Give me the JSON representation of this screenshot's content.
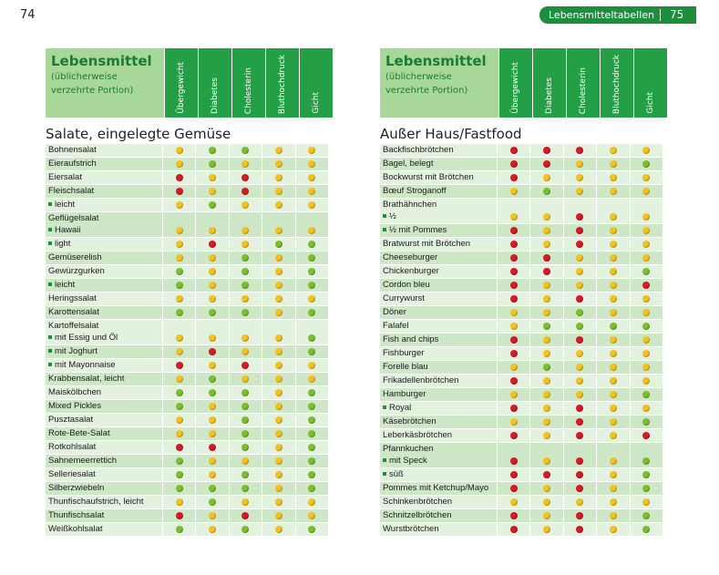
{
  "page_left": "74",
  "running_head": {
    "title": "Lebensmitteltabellen",
    "page": "75"
  },
  "header": {
    "title": "Lebensmittel",
    "subtitle_line1": "(üblicherweise",
    "subtitle_line2": "verzehrte Portion)",
    "columns": [
      "Übergewicht",
      "Diabetes",
      "Cholesterin",
      "Bluthochdruck",
      "Gicht"
    ]
  },
  "legend_colors": {
    "g": "#7bbf2e",
    "y": "#f4c21f",
    "r": "#d51b27"
  },
  "left": {
    "section": "Salate, eingelegte Gemüse",
    "rows": [
      {
        "label": "Bohnensalat",
        "dots": [
          "y",
          "g",
          "g",
          "y",
          "y"
        ]
      },
      {
        "label": "Eieraufstrich",
        "dots": [
          "y",
          "g",
          "y",
          "y",
          "y"
        ]
      },
      {
        "label": "Eiersalat",
        "dots": [
          "r",
          "y",
          "r",
          "y",
          "y"
        ]
      },
      {
        "label": "Fleischsalat",
        "dots": [
          "r",
          "y",
          "r",
          "y",
          "y"
        ]
      },
      {
        "label": "leicht",
        "bullet": true,
        "dots": [
          "y",
          "g",
          "y",
          "y",
          "y"
        ]
      },
      {
        "label": "Geflügelsalat",
        "label2": "Hawaii",
        "bullet2": true,
        "dots": [
          "y",
          "y",
          "y",
          "y",
          "y"
        ]
      },
      {
        "label": "light",
        "bullet": true,
        "dots": [
          "y",
          "r",
          "y",
          "g",
          "g"
        ]
      },
      {
        "label": "Gemüserelish",
        "dots": [
          "y",
          "y",
          "g",
          "y",
          "g"
        ]
      },
      {
        "label": "Gewürzgurken",
        "dots": [
          "g",
          "y",
          "g",
          "y",
          "g"
        ]
      },
      {
        "label": "leicht",
        "bullet": true,
        "dots": [
          "g",
          "y",
          "g",
          "y",
          "g"
        ]
      },
      {
        "label": "Heringssalat",
        "dots": [
          "y",
          "y",
          "y",
          "y",
          "y"
        ]
      },
      {
        "label": "Karottensalat",
        "dots": [
          "g",
          "g",
          "g",
          "y",
          "g"
        ]
      },
      {
        "label": "Kartoffelsalat",
        "label2": "mit Essig und Öl",
        "bullet2": true,
        "dots": [
          "y",
          "y",
          "y",
          "y",
          "g"
        ]
      },
      {
        "label": "mit Joghurt",
        "bullet": true,
        "dots": [
          "y",
          "r",
          "y",
          "y",
          "g"
        ]
      },
      {
        "label": "mit Mayonnaise",
        "bullet": true,
        "dots": [
          "r",
          "y",
          "r",
          "y",
          "y"
        ]
      },
      {
        "label": "Krabbensalat, leicht",
        "dots": [
          "y",
          "g",
          "y",
          "y",
          "y"
        ]
      },
      {
        "label": "Maiskölbchen",
        "dots": [
          "g",
          "g",
          "g",
          "y",
          "g"
        ]
      },
      {
        "label": "Mixed Pickles",
        "dots": [
          "g",
          "y",
          "g",
          "y",
          "g"
        ]
      },
      {
        "label": "Pusztasalat",
        "dots": [
          "y",
          "y",
          "g",
          "y",
          "g"
        ]
      },
      {
        "label": "Rote-Bete-Salat",
        "dots": [
          "y",
          "y",
          "g",
          "y",
          "g"
        ]
      },
      {
        "label": "Rotkohlsalat",
        "dots": [
          "r",
          "r",
          "g",
          "y",
          "g"
        ]
      },
      {
        "label": "Sahnemeerrettich",
        "dots": [
          "g",
          "y",
          "y",
          "y",
          "g"
        ]
      },
      {
        "label": "Selleriesalat",
        "dots": [
          "g",
          "y",
          "g",
          "y",
          "g"
        ]
      },
      {
        "label": "Silberzwiebeln",
        "dots": [
          "g",
          "g",
          "g",
          "y",
          "g"
        ]
      },
      {
        "label": "Thunfischaufstrich, leicht",
        "dots": [
          "y",
          "g",
          "y",
          "y",
          "y"
        ]
      },
      {
        "label": "Thunfischsalat",
        "dots": [
          "r",
          "y",
          "r",
          "y",
          "y"
        ]
      },
      {
        "label": "Weißkohlsalat",
        "dots": [
          "g",
          "y",
          "g",
          "y",
          "g"
        ]
      }
    ]
  },
  "right": {
    "section": "Außer Haus/Fastfood",
    "rows": [
      {
        "label": "Backfischbrötchen",
        "dots": [
          "r",
          "r",
          "r",
          "y",
          "y"
        ]
      },
      {
        "label": "Bagel, belegt",
        "dots": [
          "r",
          "r",
          "y",
          "y",
          "g"
        ]
      },
      {
        "label": "Bockwurst mit Brötchen",
        "dots": [
          "r",
          "y",
          "y",
          "y",
          "y"
        ]
      },
      {
        "label": "Bœuf Stroganoff",
        "dots": [
          "y",
          "g",
          "y",
          "y",
          "y"
        ]
      },
      {
        "label": "Brathähnchen",
        "label2": "½",
        "bullet2": true,
        "dots": [
          "y",
          "y",
          "r",
          "y",
          "y"
        ]
      },
      {
        "label": "½ mit Pommes",
        "bullet": true,
        "dots": [
          "r",
          "y",
          "r",
          "y",
          "y"
        ]
      },
      {
        "label": "Bratwurst mit Brötchen",
        "dots": [
          "r",
          "y",
          "r",
          "y",
          "y"
        ]
      },
      {
        "label": "Cheeseburger",
        "dots": [
          "r",
          "r",
          "y",
          "y",
          "y"
        ]
      },
      {
        "label": "Chickenburger",
        "dots": [
          "r",
          "r",
          "y",
          "y",
          "g"
        ]
      },
      {
        "label": "Cordon bleu",
        "dots": [
          "r",
          "y",
          "y",
          "y",
          "r"
        ]
      },
      {
        "label": "Currywurst",
        "dots": [
          "r",
          "y",
          "r",
          "y",
          "y"
        ]
      },
      {
        "label": "Döner",
        "dots": [
          "y",
          "y",
          "g",
          "y",
          "y"
        ]
      },
      {
        "label": "Falafel",
        "dots": [
          "y",
          "g",
          "g",
          "g",
          "g"
        ]
      },
      {
        "label": "Fish and chips",
        "dots": [
          "r",
          "y",
          "r",
          "y",
          "y"
        ]
      },
      {
        "label": "Fishburger",
        "dots": [
          "r",
          "y",
          "y",
          "y",
          "y"
        ]
      },
      {
        "label": "Forelle blau",
        "dots": [
          "y",
          "g",
          "y",
          "y",
          "y"
        ]
      },
      {
        "label": "Frikadellenbrötchen",
        "dots": [
          "r",
          "y",
          "y",
          "y",
          "y"
        ]
      },
      {
        "label": "Hamburger",
        "dots": [
          "y",
          "y",
          "y",
          "y",
          "g"
        ]
      },
      {
        "label": "Royal",
        "bullet": true,
        "dots": [
          "r",
          "y",
          "r",
          "y",
          "y"
        ]
      },
      {
        "label": "Käsebrötchen",
        "dots": [
          "y",
          "y",
          "r",
          "y",
          "g"
        ]
      },
      {
        "label": "Leberkäsbrötchen",
        "dots": [
          "r",
          "y",
          "r",
          "y",
          "r"
        ]
      },
      {
        "label": "Pfannkuchen",
        "label2": "mit Speck",
        "bullet2": true,
        "dots": [
          "r",
          "y",
          "r",
          "y",
          "g"
        ]
      },
      {
        "label": "süß",
        "bullet": true,
        "dots": [
          "r",
          "r",
          "r",
          "y",
          "g"
        ]
      },
      {
        "label": "Pommes mit Ketchup/Mayo",
        "dots": [
          "r",
          "y",
          "r",
          "y",
          "g"
        ]
      },
      {
        "label": "Schinkenbrötchen",
        "dots": [
          "y",
          "y",
          "y",
          "y",
          "y"
        ]
      },
      {
        "label": "Schnitzelbrötchen",
        "dots": [
          "r",
          "y",
          "r",
          "y",
          "g"
        ]
      },
      {
        "label": "Wurstbrötchen",
        "dots": [
          "r",
          "y",
          "r",
          "y",
          "g"
        ]
      }
    ]
  }
}
